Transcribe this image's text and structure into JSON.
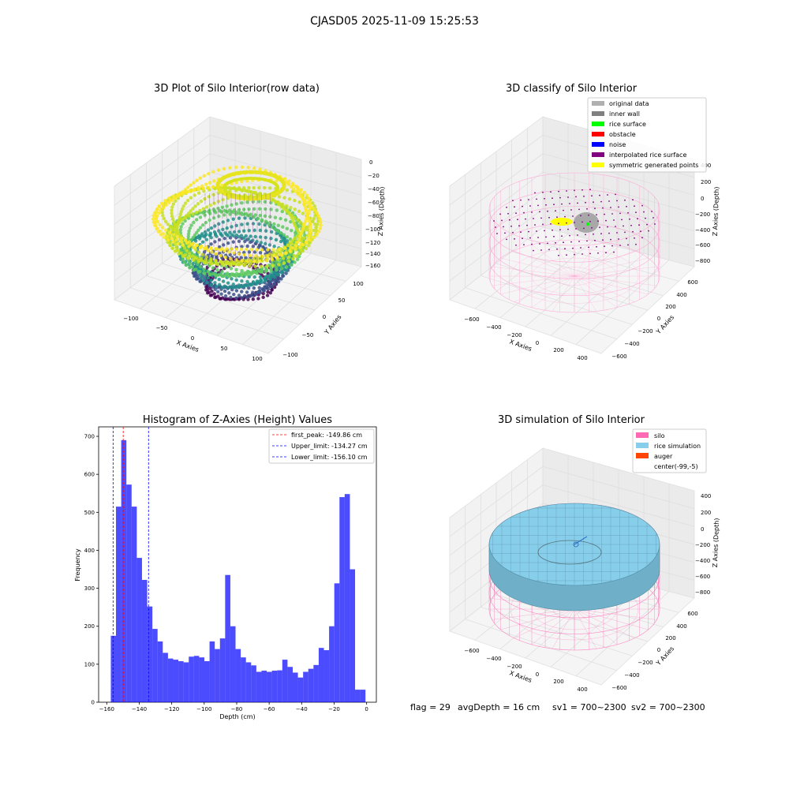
{
  "figure": {
    "suptitle": "CJASD05 2025-11-09 15:25:53",
    "status": {
      "flag": "flag = 29",
      "avg_depth": "avgDepth = 16 cm",
      "sv1": "sv1 = 700~2300",
      "sv2": "sv2 = 700~2300"
    }
  },
  "panels": {
    "raw": {
      "title": "3D Plot of Silo Interior(row data)",
      "xlabel": "X Axies",
      "ylabel": "Y Axies",
      "zlabel": "Z Axies (Depth)",
      "xticks": [
        "−100",
        "−50",
        "0",
        "50",
        "100"
      ],
      "yticks": [
        "−100",
        "−50",
        "0",
        "50",
        "100"
      ],
      "zticks": [
        "0",
        "−20",
        "−40",
        "−60",
        "−80",
        "−100",
        "−120",
        "−140",
        "−160"
      ]
    },
    "classify": {
      "title": "3D classify of Silo Interior",
      "xlabel": "X Axies",
      "ylabel": "Y Axies",
      "zlabel": "Z Axies (Depth)",
      "xticks": [
        "−600",
        "−400",
        "−200",
        "0",
        "200",
        "400"
      ],
      "yticks": [
        "600",
        "400",
        "200",
        "0",
        "−200",
        "−400",
        "−600"
      ],
      "zticks": [
        "400",
        "200",
        "0",
        "−200",
        "−400",
        "−600",
        "−800"
      ],
      "legend": [
        {
          "label": "original data",
          "color": "#b0b0b0"
        },
        {
          "label": "inner wall",
          "color": "#808080"
        },
        {
          "label": "rice surface",
          "color": "#00ff00"
        },
        {
          "label": "obstacle",
          "color": "#ff0000"
        },
        {
          "label": "noise",
          "color": "#0000ff"
        },
        {
          "label": "interpolated rice surface",
          "color": "#800080"
        },
        {
          "label": "symmetric generated points",
          "color": "#ffff00"
        }
      ]
    },
    "simulation": {
      "title": "3D simulation of Silo Interior",
      "xlabel": "X Axies",
      "ylabel": "Y Axies",
      "zlabel": "Z Axies (Depth)",
      "xticks": [
        "−600",
        "−400",
        "−200",
        "0",
        "200",
        "400"
      ],
      "yticks": [
        "600",
        "400",
        "200",
        "0",
        "−200",
        "−400",
        "−600"
      ],
      "zticks": [
        "400",
        "200",
        "0",
        "−200",
        "−400",
        "−600",
        "−800"
      ],
      "legend": [
        {
          "label": "silo",
          "color": "#ff69b4"
        },
        {
          "label": "rice simulation",
          "color": "#87ceeb"
        },
        {
          "label": "auger",
          "color": "#ff4500"
        },
        {
          "label": "center(-99,-5)",
          "color": "#ffffff"
        }
      ]
    }
  },
  "chart_data": [
    {
      "type": "bar",
      "title": "Histogram of Z-Axies (Height) Values",
      "xlabel": "Depth (cm)",
      "ylabel": "Frequency",
      "xlim": [
        -165,
        6
      ],
      "ylim": [
        0,
        725
      ],
      "xticks": [
        -160,
        -140,
        -120,
        -100,
        -80,
        -60,
        -40,
        -20,
        0
      ],
      "yticks": [
        0,
        100,
        200,
        300,
        400,
        500,
        600,
        700
      ],
      "bar_color": "#0000ff",
      "bin_start": -157.5,
      "bin_width": 3.2,
      "values": [
        175,
        515,
        690,
        573,
        515,
        380,
        322,
        252,
        193,
        160,
        130,
        115,
        112,
        108,
        105,
        120,
        122,
        118,
        108,
        160,
        140,
        168,
        335,
        200,
        140,
        118,
        105,
        97,
        80,
        83,
        80,
        83,
        84,
        112,
        93,
        78,
        65,
        80,
        88,
        98,
        143,
        137,
        200,
        313,
        540,
        548,
        350,
        33,
        33
      ],
      "vlines": [
        {
          "label": "first_peak: -149.86 cm",
          "x": -149.86,
          "color": "#ff0000"
        },
        {
          "label": "Upper_limit: -134.27 cm",
          "x": -134.27,
          "color": "#0000ff"
        },
        {
          "label": "Lower_limit: -156.10 cm",
          "x": -156.1,
          "color": "#0000ff"
        }
      ],
      "legend_position": "top-right"
    }
  ]
}
